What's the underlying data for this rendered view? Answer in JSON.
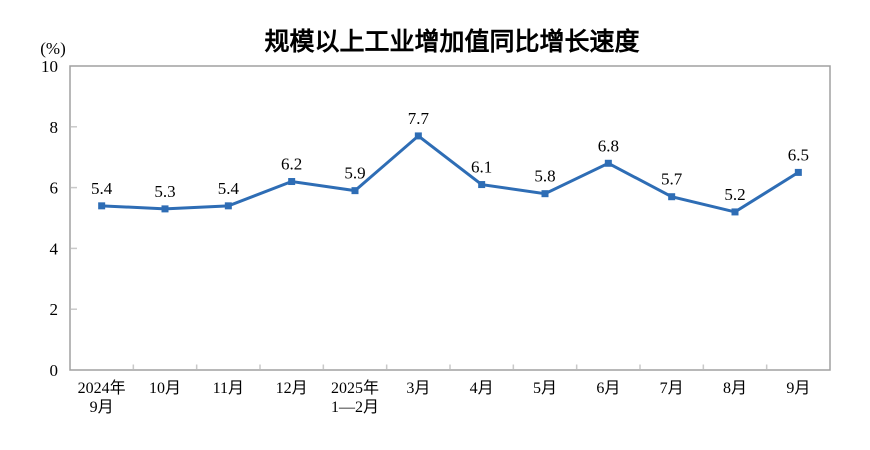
{
  "chart_data": {
    "type": "line",
    "title": "规模以上工业增加值同比增长速度",
    "unit_label": "(%)",
    "categories": [
      "2024年\n9月",
      "10月",
      "11月",
      "12月",
      "2025年\n1—2月",
      "3月",
      "4月",
      "5月",
      "6月",
      "7月",
      "8月",
      "9月"
    ],
    "values": [
      5.4,
      5.3,
      5.4,
      6.2,
      5.9,
      7.7,
      6.1,
      5.8,
      6.8,
      5.7,
      5.2,
      6.5
    ],
    "ylim": [
      0,
      10
    ],
    "yticks": [
      0,
      2,
      4,
      6,
      8,
      10
    ],
    "grid": false,
    "legend": "none",
    "marker": "square",
    "line_color": "#2E6DB5",
    "axis_color": "#A0A0A0",
    "tick_color": "#C9C9C9",
    "text_color": "#000000"
  }
}
